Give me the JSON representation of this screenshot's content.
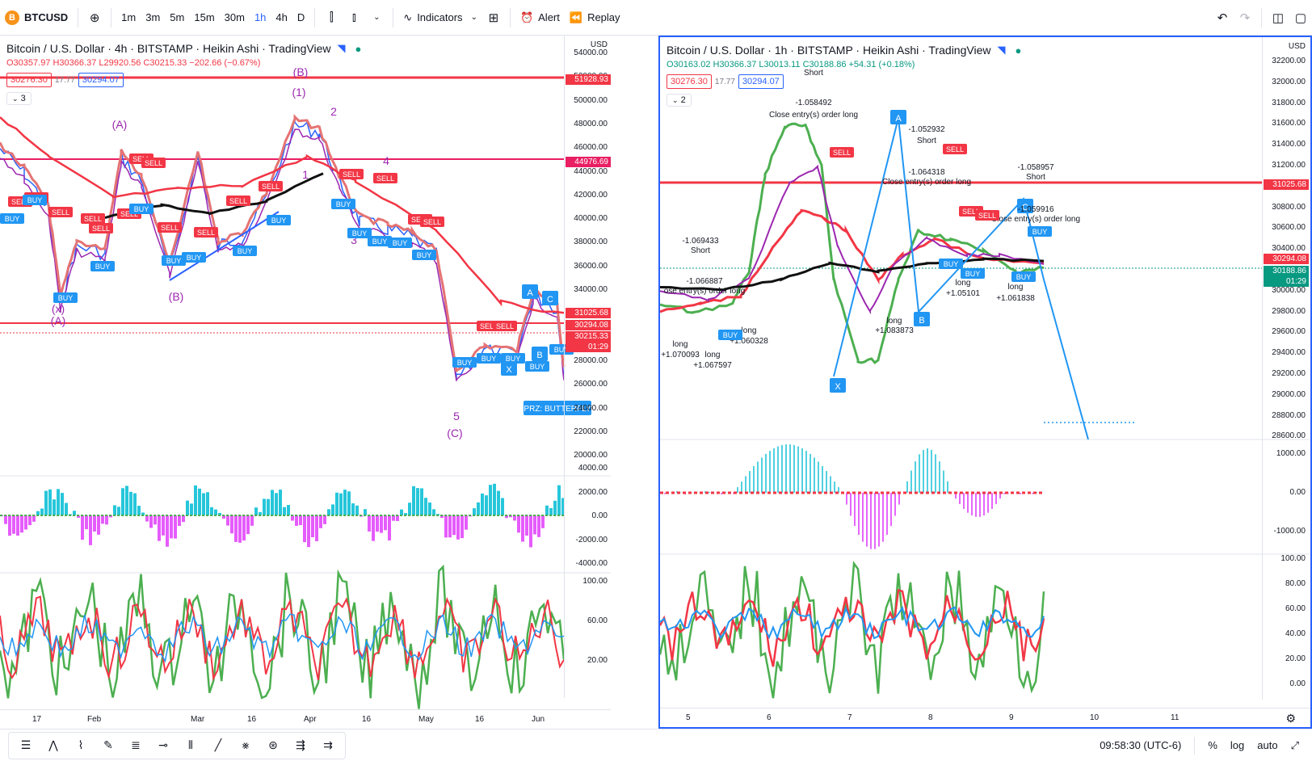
{
  "topbar": {
    "symbol": "BTCUSD",
    "symbol_glyph": "B",
    "intervals": [
      "1m",
      "3m",
      "5m",
      "15m",
      "30m",
      "1h",
      "4h",
      "D"
    ],
    "active_interval": "1h",
    "indicators_label": "Indicators",
    "alert_label": "Alert",
    "replay_label": "Replay"
  },
  "left_chart": {
    "title": "Bitcoin / U.S. Dollar · 4h · BITSTAMP · Heikin Ashi · TradingView",
    "ohlc": "O30357.97 H30366.37 L29920.56 C30215.33 −202.66 (−0.67%)",
    "bid": "30276.30",
    "spread": "17.77",
    "ask": "30294.07",
    "indicator_count": "3",
    "currency": "USD",
    "price_labels": [
      "54000.00",
      "52000.00",
      "50000.00",
      "48000.00",
      "46000.00",
      "44000.00",
      "42000.00",
      "40000.00",
      "38000.00",
      "36000.00",
      "34000.00",
      "32000.00",
      "30000.00",
      "28000.00",
      "26000.00",
      "24000.00",
      "22000.00",
      "20000.00"
    ],
    "price_tags": [
      {
        "text": "51928.93",
        "color": "#f23645"
      },
      {
        "text": "44976.69",
        "color": "#e91e63"
      },
      {
        "text": "31025.68",
        "color": "#f23645"
      },
      {
        "text": "30294.08",
        "color": "#f23645"
      },
      {
        "text": "30215.33",
        "color": "#f23645"
      },
      {
        "text": "01:29",
        "color": "#f23645"
      }
    ],
    "osc_labels": [
      "4000.00",
      "2000.00",
      "0.00",
      "-2000.00",
      "-4000.00"
    ],
    "rsi_labels": [
      "100.00",
      "60.00",
      "20.00"
    ],
    "time_labels": [
      "17",
      "Feb",
      "Mar",
      "16",
      "Apr",
      "16",
      "May",
      "16",
      "Jun"
    ],
    "wave_labels": [
      "(B)",
      "(1)",
      "(A)",
      "(B)",
      "(x)",
      "(A)",
      "5",
      "(C)",
      "4",
      "3",
      "2",
      "1"
    ],
    "prz_label": "PRZ: BUTTERFLY"
  },
  "right_chart": {
    "title": "Bitcoin / U.S. Dollar · 1h · BITSTAMP · Heikin Ashi · TradingView",
    "ohlc": "O30163.02 H30366.37 L30013.11 C30188.86 +54.31 (+0.18%)",
    "bid": "30276.30",
    "spread": "17.77",
    "ask": "30294.07",
    "indicator_count": "2",
    "currency": "USD",
    "price_labels": [
      "32200.00",
      "32000.00",
      "31800.00",
      "31600.00",
      "31400.00",
      "31200.00",
      "31000.00",
      "30800.00",
      "30600.00",
      "30400.00",
      "30200.00",
      "30000.00",
      "29800.00",
      "29600.00",
      "29400.00",
      "29200.00",
      "29000.00",
      "28800.00",
      "28600.00"
    ],
    "price_tags": [
      {
        "text": "31025.68",
        "color": "#f23645"
      },
      {
        "text": "30294.08",
        "color": "#f23645"
      },
      {
        "text": "30188.86",
        "color": "#089981"
      },
      {
        "text": "01:29",
        "color": "#089981"
      }
    ],
    "osc_labels": [
      "1000.00",
      "0.00",
      "-1000.00"
    ],
    "rsi_labels": [
      "100.00",
      "80.00",
      "60.00",
      "40.00",
      "20.00",
      "0.00"
    ],
    "time_labels": [
      "5",
      "6",
      "7",
      "8",
      "9",
      "10",
      "11"
    ],
    "annotations": [
      {
        "text": "Short"
      },
      {
        "text": "-1.058492"
      },
      {
        "text": "Close entry(s) order long"
      },
      {
        "text": "-1.052932"
      },
      {
        "text": "Short"
      },
      {
        "text": "-1.064318"
      },
      {
        "text": "Close entry(s) order long"
      },
      {
        "text": "-1.058957"
      },
      {
        "text": "Short"
      },
      {
        "text": "-1.059916"
      },
      {
        "text": "Close entry(s) order long"
      },
      {
        "text": "-1.069433"
      },
      {
        "text": "Short"
      },
      {
        "text": "-1.066887"
      },
      {
        "text": "ose entry(s) order long"
      },
      {
        "text": "long"
      },
      {
        "text": "+1.070093"
      },
      {
        "text": "long"
      },
      {
        "text": "+1.067597"
      },
      {
        "text": "long"
      },
      {
        "text": "+1.060328"
      },
      {
        "text": "long"
      },
      {
        "text": "+1.083873"
      },
      {
        "text": "long"
      },
      {
        "text": "+1.05101"
      },
      {
        "text": "long"
      },
      {
        "text": "+1.061838"
      }
    ],
    "pattern_points": [
      "A",
      "B",
      "C",
      "X"
    ]
  },
  "bottombar": {
    "time": "09:58:30 (UTC-6)",
    "percent": "%",
    "log": "log",
    "auto": "auto"
  }
}
